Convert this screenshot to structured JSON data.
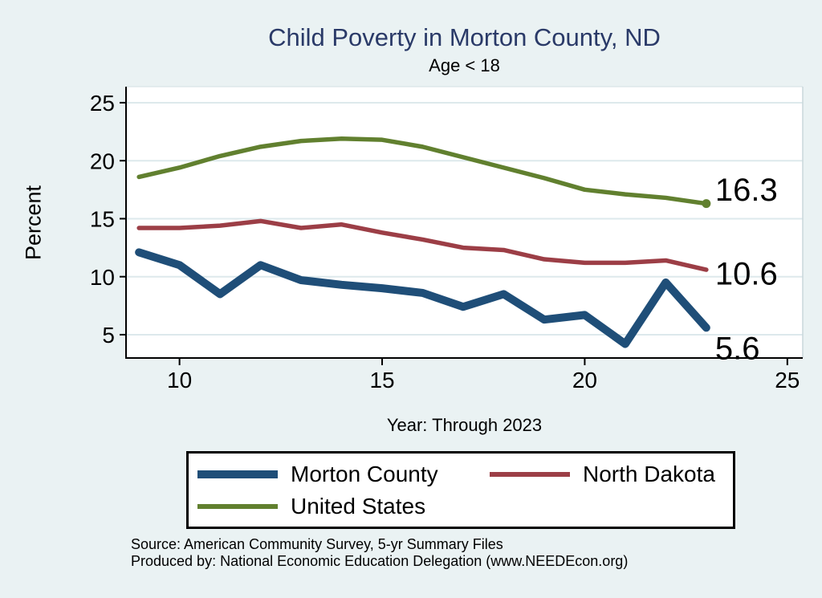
{
  "figure": {
    "title": "Child Poverty in Morton County, ND",
    "subtitle": "Age < 18"
  },
  "chart_data": {
    "type": "line",
    "x": [
      2009,
      2010,
      2011,
      2012,
      2013,
      2014,
      2015,
      2016,
      2017,
      2018,
      2019,
      2020,
      2021,
      2022,
      2023
    ],
    "series": [
      {
        "name": "Morton County",
        "color": "#1f4e78",
        "stroke_width": 10,
        "values": [
          12.1,
          11.0,
          8.5,
          11.0,
          9.7,
          9.3,
          9.0,
          8.6,
          7.4,
          8.5,
          6.3,
          6.7,
          4.2,
          9.5,
          5.6
        ],
        "end_label": "5.6",
        "end_marker": false
      },
      {
        "name": "North Dakota",
        "color": "#9c3e46",
        "stroke_width": 5.5,
        "values": [
          14.2,
          14.2,
          14.4,
          14.8,
          14.2,
          14.5,
          13.8,
          13.2,
          12.5,
          12.3,
          11.5,
          11.2,
          11.2,
          11.4,
          10.6
        ],
        "end_label": "10.6",
        "end_marker": false
      },
      {
        "name": "United States",
        "color": "#61802f",
        "stroke_width": 5.5,
        "values": [
          18.6,
          19.4,
          20.4,
          21.2,
          21.7,
          21.9,
          21.8,
          21.2,
          20.3,
          19.4,
          18.5,
          17.5,
          17.1,
          16.8,
          16.3
        ],
        "end_label": "16.3",
        "end_marker": true
      }
    ],
    "title": "Child Poverty in Morton County, ND",
    "subtitle": "Age < 18",
    "xlabel": "Year: Through 2023",
    "ylabel": "Percent",
    "xlim": [
      2008.68,
      2025.38
    ],
    "ylim": [
      2.99,
      26.38
    ],
    "x_ticks": [
      2010,
      2015,
      2020,
      2025
    ],
    "x_tick_labels": [
      "10",
      "15",
      "20",
      "25"
    ],
    "y_ticks": [
      5,
      10,
      15,
      20,
      25
    ],
    "y_tick_labels": [
      "5",
      "10",
      "15",
      "20",
      "25"
    ],
    "grid": "horizontal",
    "legend_position": "bottom"
  },
  "colors": {
    "page_background": "#eaf2f3",
    "plot_background": "#ffffff",
    "gridline": "#dde9ec",
    "axis": "#000000",
    "title_text": "#2a3a68"
  },
  "notes": {
    "source": "Source: American Community Survey, 5-yr Summary Files",
    "produced_by": "Produced by: National Economic Education Delegation (www.NEEDEcon.org)"
  }
}
